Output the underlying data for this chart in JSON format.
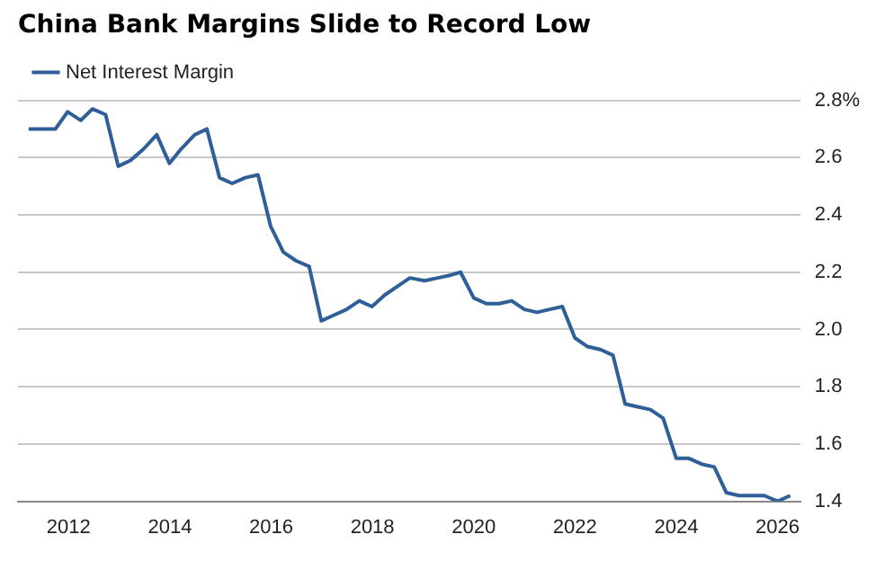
{
  "chart_data": {
    "type": "line",
    "title": "China Bank Margins Slide to Record Low",
    "x": [
      2011.21,
      2011.74,
      2011.98,
      2012.24,
      2012.47,
      2012.73,
      2012.98,
      2013.22,
      2013.48,
      2013.74,
      2013.99,
      2014.22,
      2014.49,
      2014.73,
      2014.98,
      2015.23,
      2015.49,
      2015.74,
      2015.99,
      2016.24,
      2016.49,
      2016.75,
      2016.99,
      2017.24,
      2017.49,
      2017.74,
      2017.99,
      2018.24,
      2018.49,
      2018.74,
      2019.03,
      2019.29,
      2019.55,
      2019.74,
      2020.0,
      2020.25,
      2020.5,
      2020.75,
      2021.0,
      2021.25,
      2021.5,
      2021.75,
      2022.0,
      2022.25,
      2022.5,
      2022.75,
      2022.99,
      2023.24,
      2023.49,
      2023.74,
      2024.0,
      2024.25,
      2024.5,
      2024.75,
      2024.99,
      2025.24,
      2025.49,
      2025.74,
      2026.0,
      2026.25
    ],
    "series": [
      {
        "name": "Net Interest Margin",
        "color": "#2f5f98",
        "values": [
          2.7,
          2.7,
          2.76,
          2.73,
          2.77,
          2.75,
          2.57,
          2.59,
          2.63,
          2.68,
          2.58,
          2.63,
          2.68,
          2.7,
          2.53,
          2.51,
          2.53,
          2.54,
          2.36,
          2.27,
          2.24,
          2.22,
          2.03,
          2.05,
          2.07,
          2.1,
          2.08,
          2.12,
          2.15,
          2.18,
          2.17,
          2.18,
          2.19,
          2.2,
          2.11,
          2.09,
          2.09,
          2.1,
          2.07,
          2.06,
          2.07,
          2.08,
          1.97,
          1.94,
          1.93,
          1.91,
          1.74,
          1.73,
          1.72,
          1.69,
          1.55,
          1.55,
          1.53,
          1.52,
          1.43,
          1.42,
          1.42,
          1.42,
          1.4,
          1.42
        ]
      }
    ],
    "xlim": [
      2011.0,
      2026.45
    ],
    "xticks": [
      2012,
      2014,
      2016,
      2018,
      2020,
      2022,
      2024,
      2026
    ],
    "ylim": [
      1.4,
      2.8
    ],
    "yticks": [
      1.4,
      1.6,
      1.8,
      {
        "value": 2.0,
        "label": "2.0"
      },
      2.2,
      2.4,
      2.6,
      {
        "value": 2.8,
        "label": "2.8%"
      }
    ],
    "grid": "y",
    "legend": "top left",
    "marker": "none",
    "line_style": "solid"
  }
}
